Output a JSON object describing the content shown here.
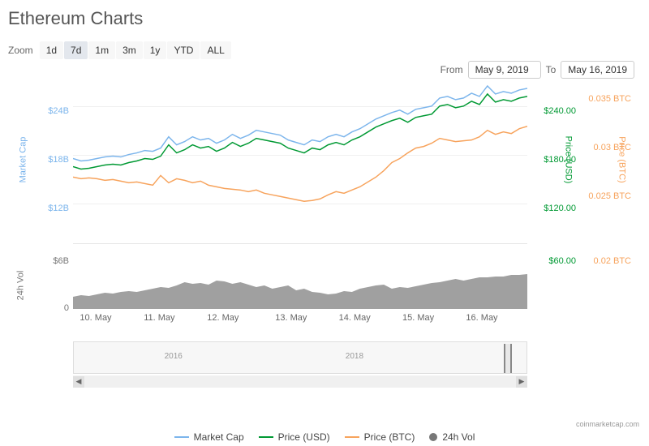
{
  "title": "Ethereum Charts",
  "zoom": {
    "label": "Zoom",
    "buttons": [
      "1d",
      "7d",
      "1m",
      "3m",
      "1y",
      "YTD",
      "ALL"
    ],
    "active_index": 1
  },
  "date_range": {
    "from_label": "From",
    "from_value": "May 9, 2019",
    "to_label": "To",
    "to_value": "May 16, 2019"
  },
  "chart": {
    "type": "line",
    "background_color": "#ffffff",
    "grid_color": "#f0f0f0",
    "left_axis": {
      "label": "Market Cap",
      "color": "#7cb5ec",
      "ticks": [
        {
          "pos": 30,
          "label": "$24B"
        },
        {
          "pos": 90,
          "label": "$18B"
        },
        {
          "pos": 150,
          "label": "$12B"
        }
      ]
    },
    "right_axis_1": {
      "label": "Price (USD)",
      "color": "#009933",
      "ticks": [
        {
          "pos": 30,
          "label": "$240.00"
        },
        {
          "pos": 90,
          "label": "$180.00"
        },
        {
          "pos": 150,
          "label": "$120.00"
        }
      ]
    },
    "right_axis_2": {
      "label": "Price (BTC)",
      "color": "#f7a35c",
      "ticks": [
        {
          "pos": 15,
          "label": "0.035 BTC"
        },
        {
          "pos": 75,
          "label": "0.03 BTC"
        },
        {
          "pos": 135,
          "label": "0.025 BTC"
        }
      ]
    },
    "vol_axis": {
      "label": "24h Vol",
      "color": "#777777",
      "ticks": [
        {
          "pos": 215,
          "label": "$6B"
        },
        {
          "pos": 273,
          "label": "0"
        }
      ],
      "right_1_ticks": [
        {
          "pos": 215,
          "label": "$60.00"
        }
      ],
      "right_2_ticks": [
        {
          "pos": 215,
          "label": "0.02 BTC"
        }
      ]
    },
    "x_ticks": [
      {
        "pct": 5,
        "label": "10. May"
      },
      {
        "pct": 19,
        "label": "11. May"
      },
      {
        "pct": 33,
        "label": "12. May"
      },
      {
        "pct": 48,
        "label": "13. May"
      },
      {
        "pct": 62,
        "label": "14. May"
      },
      {
        "pct": 76,
        "label": "15. May"
      },
      {
        "pct": 90,
        "label": "16. May"
      }
    ],
    "series": {
      "market_cap": {
        "name": "Market Cap",
        "color": "#7cb5ec",
        "line_width": 1.5,
        "points": [
          95,
          98,
          97,
          95,
          93,
          92,
          93,
          90,
          88,
          85,
          86,
          82,
          68,
          78,
          74,
          68,
          72,
          70,
          76,
          72,
          65,
          70,
          66,
          60,
          62,
          64,
          66,
          72,
          75,
          78,
          72,
          74,
          68,
          65,
          68,
          62,
          58,
          52,
          46,
          42,
          38,
          35,
          40,
          34,
          32,
          30,
          20,
          18,
          22,
          20,
          14,
          18,
          5,
          15,
          12,
          14,
          10,
          8
        ]
      },
      "price_usd": {
        "name": "Price (USD)",
        "color": "#009933",
        "line_width": 1.5,
        "points": [
          105,
          108,
          107,
          105,
          103,
          102,
          103,
          100,
          98,
          95,
          96,
          92,
          78,
          88,
          84,
          78,
          82,
          80,
          86,
          82,
          75,
          80,
          76,
          70,
          72,
          74,
          76,
          82,
          85,
          88,
          82,
          84,
          78,
          75,
          78,
          72,
          68,
          62,
          56,
          52,
          48,
          45,
          50,
          44,
          42,
          40,
          30,
          28,
          32,
          30,
          24,
          28,
          15,
          25,
          22,
          24,
          20,
          18
        ]
      },
      "price_btc": {
        "name": "Price (BTC)",
        "color": "#f7a35c",
        "line_width": 1.5,
        "points": [
          118,
          120,
          119,
          120,
          122,
          121,
          123,
          125,
          124,
          126,
          128,
          116,
          125,
          120,
          122,
          125,
          123,
          128,
          130,
          132,
          133,
          134,
          136,
          134,
          138,
          140,
          142,
          144,
          146,
          148,
          147,
          145,
          140,
          136,
          138,
          134,
          130,
          124,
          118,
          110,
          100,
          95,
          88,
          82,
          80,
          76,
          70,
          72,
          74,
          73,
          72,
          68,
          60,
          65,
          62,
          64,
          58,
          55
        ]
      }
    },
    "volume": {
      "name": "24h Vol",
      "color": "#777777",
      "points": [
        50,
        48,
        49,
        47,
        45,
        46,
        44,
        43,
        44,
        42,
        40,
        38,
        39,
        36,
        32,
        34,
        33,
        35,
        30,
        31,
        34,
        32,
        35,
        38,
        36,
        40,
        38,
        36,
        42,
        40,
        44,
        45,
        47,
        46,
        43,
        44,
        40,
        38,
        36,
        35,
        40,
        38,
        39,
        37,
        35,
        33,
        32,
        30,
        28,
        30,
        28,
        26,
        26,
        25,
        25,
        23,
        23,
        22
      ]
    }
  },
  "navigator": {
    "ticks": [
      {
        "pct": 20,
        "label": "2016"
      },
      {
        "pct": 60,
        "label": "2018"
      }
    ]
  },
  "legend": {
    "items": [
      {
        "name": "Market Cap",
        "color": "#7cb5ec",
        "type": "line"
      },
      {
        "name": "Price (USD)",
        "color": "#009933",
        "type": "line"
      },
      {
        "name": "Price (BTC)",
        "color": "#f7a35c",
        "type": "line"
      },
      {
        "name": "24h Vol",
        "color": "#777777",
        "type": "dot"
      }
    ]
  },
  "attribution": "coinmarketcap.com"
}
